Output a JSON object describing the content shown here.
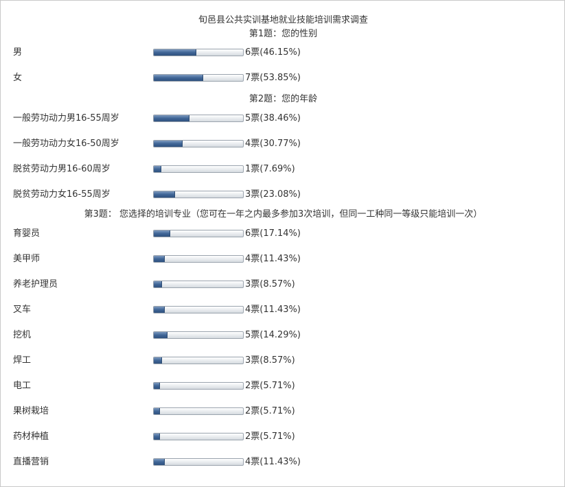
{
  "chart_data": {
    "type": "bar",
    "title": "旬邑县公共实训基地就业技能培训需求调查",
    "questions": [
      {
        "heading": "第1题：您的性别",
        "options": [
          {
            "label": "男",
            "votes": 6,
            "vote_text": "6票(46.15%)",
            "percent": 46.15
          },
          {
            "label": "女",
            "votes": 7,
            "vote_text": "7票(53.85%)",
            "percent": 53.85
          }
        ]
      },
      {
        "heading": "第2题：您的年龄",
        "options": [
          {
            "label": "一般劳功动力男16-55周岁",
            "votes": 5,
            "vote_text": "5票(38.46%)",
            "percent": 38.46
          },
          {
            "label": "一般劳功动力女16-50周岁",
            "votes": 4,
            "vote_text": "4票(30.77%)",
            "percent": 30.77
          },
          {
            "label": "脱贫劳动力男16-60周岁",
            "votes": 1,
            "vote_text": "1票(7.69%)",
            "percent": 7.69
          },
          {
            "label": "脱贫劳动力女16-55周岁",
            "votes": 3,
            "vote_text": "3票(23.08%)",
            "percent": 23.08
          }
        ]
      },
      {
        "heading": "第3题：  您选择的培训专业（您可在一年之内最多参加3次培训，但同一工种同一等级只能培训一次）",
        "options": [
          {
            "label": "育婴员",
            "votes": 6,
            "vote_text": "6票(17.14%)",
            "percent": 17.14
          },
          {
            "label": "美甲师",
            "votes": 4,
            "vote_text": "4票(11.43%)",
            "percent": 11.43
          },
          {
            "label": "养老护理员",
            "votes": 3,
            "vote_text": "3票(8.57%)",
            "percent": 8.57
          },
          {
            "label": "叉车",
            "votes": 4,
            "vote_text": "4票(11.43%)",
            "percent": 11.43
          },
          {
            "label": "挖机",
            "votes": 5,
            "vote_text": "5票(14.29%)",
            "percent": 14.29
          },
          {
            "label": "焊工",
            "votes": 3,
            "vote_text": "3票(8.57%)",
            "percent": 8.57
          },
          {
            "label": "电工",
            "votes": 2,
            "vote_text": "2票(5.71%)",
            "percent": 5.71
          },
          {
            "label": "果树栽培",
            "votes": 2,
            "vote_text": "2票(5.71%)",
            "percent": 5.71
          },
          {
            "label": "药材种植",
            "votes": 2,
            "vote_text": "2票(5.71%)",
            "percent": 5.71
          },
          {
            "label": "直播营销",
            "votes": 4,
            "vote_text": "4票(11.43%)",
            "percent": 11.43
          }
        ]
      }
    ]
  }
}
